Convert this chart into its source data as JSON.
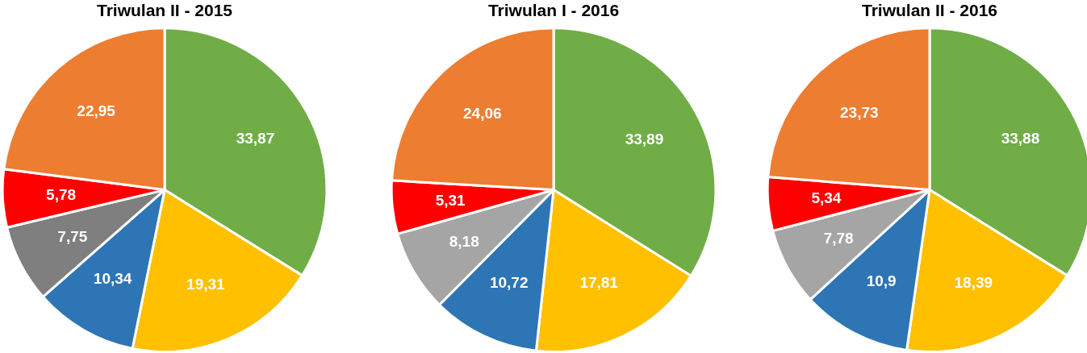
{
  "chart_data": [
    {
      "type": "pie",
      "title": "Triwulan II - 2015",
      "categories": [
        null,
        null,
        null,
        null,
        null,
        null
      ],
      "values": [
        33.87,
        19.31,
        10.34,
        7.75,
        5.78,
        22.95
      ],
      "value_labels": [
        "33,87",
        "19,31",
        "10,34",
        "7,75",
        "5,78",
        "22,95"
      ],
      "colors": [
        "#70ad47",
        "#ffc000",
        "#2e75b6",
        "#7f7f7f",
        "#ff0000",
        "#ed7d31"
      ]
    },
    {
      "type": "pie",
      "title": "Triwulan I - 2016",
      "categories": [
        null,
        null,
        null,
        null,
        null,
        null
      ],
      "values": [
        33.89,
        17.81,
        10.72,
        8.18,
        5.31,
        24.06
      ],
      "value_labels": [
        "33,89",
        "17,81",
        "10,72",
        "8,18",
        "5,31",
        "24,06"
      ],
      "colors": [
        "#70ad47",
        "#ffc000",
        "#2e75b6",
        "#a5a5a5",
        "#ff0000",
        "#ed7d31"
      ]
    },
    {
      "type": "pie",
      "title": "Triwulan II - 2016",
      "categories": [
        null,
        null,
        null,
        null,
        null,
        null
      ],
      "values": [
        33.88,
        18.39,
        10.9,
        7.78,
        5.34,
        23.73
      ],
      "value_labels": [
        "33,88",
        "18,39",
        "10,9",
        "7,78",
        "5,34",
        "23,73"
      ],
      "colors": [
        "#70ad47",
        "#ffc000",
        "#2e75b6",
        "#a5a5a5",
        "#ff0000",
        "#ed7d31"
      ]
    }
  ]
}
